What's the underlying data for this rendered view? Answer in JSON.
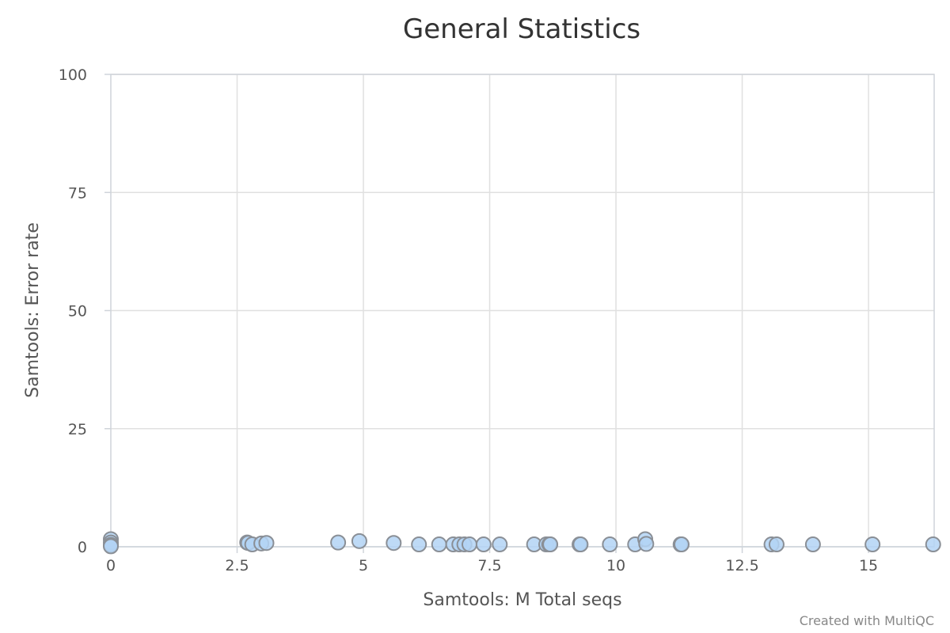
{
  "chart_data": {
    "type": "scatter",
    "title": "General Statistics",
    "xlabel": "Samtools: M Total seqs",
    "ylabel": "Samtools: Error rate",
    "credit": "Created with MultiQC",
    "xlim": [
      0,
      16.3
    ],
    "ylim": [
      0,
      100
    ],
    "x_ticks": [
      0,
      2.5,
      5,
      7.5,
      10,
      12.5,
      15
    ],
    "x_tick_labels": [
      "0",
      "2.5",
      "5",
      "7.5",
      "10",
      "12.5",
      "15"
    ],
    "y_ticks": [
      0,
      25,
      50,
      75,
      100
    ],
    "y_tick_labels": [
      "0",
      "25",
      "50",
      "75",
      "100"
    ],
    "grid": true,
    "legend": "none",
    "marker_fill": "#b3d4f4",
    "marker_stroke": "#8a8f96",
    "series": [
      {
        "points": [
          {
            "x": 0.0,
            "y": 1.6
          },
          {
            "x": 0.0,
            "y": 0.9
          },
          {
            "x": 0.0,
            "y": 0.4
          },
          {
            "x": 0.0,
            "y": 0.1
          },
          {
            "x": 2.7,
            "y": 0.9
          },
          {
            "x": 2.72,
            "y": 0.8
          },
          {
            "x": 2.8,
            "y": 0.5
          },
          {
            "x": 2.98,
            "y": 0.7
          },
          {
            "x": 3.08,
            "y": 0.8
          },
          {
            "x": 4.5,
            "y": 0.9
          },
          {
            "x": 4.92,
            "y": 1.2
          },
          {
            "x": 5.6,
            "y": 0.8
          },
          {
            "x": 6.1,
            "y": 0.5
          },
          {
            "x": 6.5,
            "y": 0.5
          },
          {
            "x": 6.78,
            "y": 0.5
          },
          {
            "x": 6.9,
            "y": 0.5
          },
          {
            "x": 7.0,
            "y": 0.5
          },
          {
            "x": 7.1,
            "y": 0.5
          },
          {
            "x": 7.38,
            "y": 0.5
          },
          {
            "x": 7.7,
            "y": 0.5
          },
          {
            "x": 8.38,
            "y": 0.5
          },
          {
            "x": 8.62,
            "y": 0.5
          },
          {
            "x": 8.68,
            "y": 0.5
          },
          {
            "x": 8.7,
            "y": 0.5
          },
          {
            "x": 9.28,
            "y": 0.5
          },
          {
            "x": 9.3,
            "y": 0.5
          },
          {
            "x": 9.88,
            "y": 0.5
          },
          {
            "x": 10.38,
            "y": 0.5
          },
          {
            "x": 10.58,
            "y": 1.6
          },
          {
            "x": 10.6,
            "y": 0.6
          },
          {
            "x": 11.28,
            "y": 0.5
          },
          {
            "x": 11.3,
            "y": 0.5
          },
          {
            "x": 13.08,
            "y": 0.5
          },
          {
            "x": 13.18,
            "y": 0.5
          },
          {
            "x": 13.9,
            "y": 0.5
          },
          {
            "x": 15.08,
            "y": 0.5
          },
          {
            "x": 16.28,
            "y": 0.5
          }
        ]
      }
    ]
  }
}
